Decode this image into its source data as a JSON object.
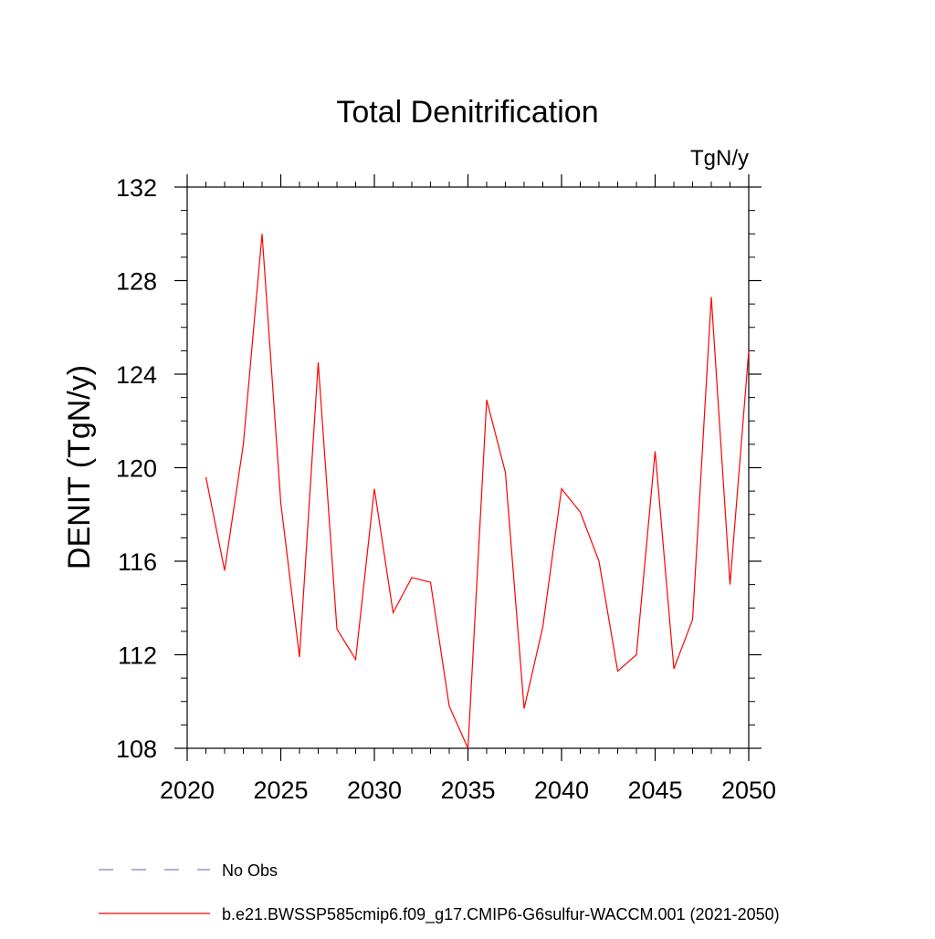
{
  "chart_data": {
    "type": "line",
    "title": "Total Denitrification",
    "units_label": "TgN/y",
    "xlabel": "",
    "ylabel": "DENIT  (TgN/y)",
    "xlim": [
      2020,
      2050
    ],
    "ylim": [
      108,
      132
    ],
    "x_ticks": [
      2020,
      2025,
      2030,
      2035,
      2040,
      2045,
      2050
    ],
    "y_ticks": [
      108,
      112,
      116,
      120,
      124,
      128,
      132
    ],
    "grid": false,
    "legend_position": "bottom",
    "x": [
      2021,
      2022,
      2023,
      2024,
      2025,
      2026,
      2027,
      2028,
      2029,
      2030,
      2031,
      2032,
      2033,
      2034,
      2035,
      2036,
      2037,
      2038,
      2039,
      2040,
      2041,
      2042,
      2043,
      2044,
      2045,
      2046,
      2047,
      2048,
      2049,
      2050
    ],
    "series": [
      {
        "name": "b.e21.BWSSP585cmip6.f09_g17.CMIP6-G6sulfur-WACCM.001 (2021-2050)",
        "color": "#ff0000",
        "style": "solid",
        "values": [
          119.6,
          115.6,
          121.0,
          130.0,
          118.5,
          111.9,
          124.5,
          113.1,
          111.8,
          119.1,
          113.8,
          115.3,
          115.1,
          109.8,
          108.0,
          122.9,
          119.8,
          109.7,
          113.2,
          119.1,
          118.1,
          116.0,
          111.3,
          112.0,
          120.7,
          111.4,
          113.5,
          127.3,
          115.0,
          125.0
        ]
      }
    ],
    "legend": [
      {
        "label": "No Obs",
        "color": "#8080c0",
        "style": "dashed"
      },
      {
        "label": "b.e21.BWSSP585cmip6.f09_g17.CMIP6-G6sulfur-WACCM.001 (2021-2050)",
        "color": "#ff0000",
        "style": "solid"
      }
    ]
  }
}
